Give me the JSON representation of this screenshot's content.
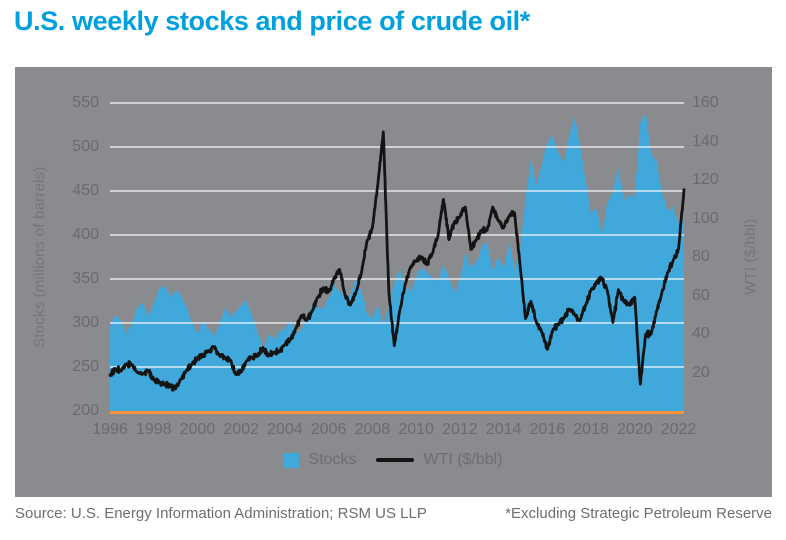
{
  "title": "U.S. weekly stocks and price of crude oil*",
  "footer": {
    "source": "Source: U.S. Energy Information Administration; RSM US LLP",
    "note": "*Excluding Strategic Petroleum Reserve"
  },
  "colors": {
    "title_blue": "#00a0dc",
    "area_blue": "#41a8dc",
    "line_black": "#141414",
    "panel_gray": "#8a8b8e",
    "baseline_orange": "#f6923c",
    "tick_text_gray": "#6a6b6e",
    "gridline_white": "rgba(255,255,255,0.8)"
  },
  "chart_data": {
    "type": "area+line",
    "title": "U.S. weekly stocks and price of crude oil*",
    "grid": "horizontal gridlines on, white, at left-axis 50-step",
    "legend_position": "bottom-center inside plot panel",
    "x_domain": [
      1996,
      2022.25
    ],
    "x_ticks": [
      1996,
      1998,
      2000,
      2002,
      2004,
      2006,
      2008,
      2010,
      2012,
      2014,
      2016,
      2018,
      2020,
      2022
    ],
    "x_start": 1996.0,
    "x_step_years": 0.25,
    "left_axis": {
      "label": "Stocks (millions of barrels)",
      "min": 200,
      "max": 550,
      "tick_step": 50,
      "ticks": [
        550,
        500,
        450,
        400,
        350,
        300,
        250,
        200
      ]
    },
    "right_axis": {
      "label": "WTI ($/bbl)",
      "min": 0,
      "max": 160,
      "tick_step": 20,
      "ticks": [
        160,
        140,
        120,
        100,
        80,
        60,
        40,
        20
      ]
    },
    "series": [
      {
        "name": "Stocks",
        "type": "area",
        "axis": "left",
        "color": "#41a8dc",
        "values": [
          295,
          310,
          303,
          288,
          300,
          318,
          322,
          308,
          322,
          340,
          343,
          330,
          338,
          332,
          318,
          300,
          288,
          302,
          294,
          285,
          298,
          318,
          308,
          312,
          320,
          326,
          308,
          288,
          272,
          286,
          282,
          290,
          294,
          302,
          288,
          293,
          306,
          322,
          318,
          316,
          328,
          344,
          336,
          330,
          332,
          350,
          336,
          312,
          306,
          320,
          298,
          318,
          346,
          362,
          342,
          336,
          352,
          363,
          358,
          350,
          348,
          366,
          352,
          334,
          350,
          380,
          364,
          370,
          386,
          392,
          360,
          374,
          362,
          392,
          362,
          380,
          442,
          486,
          456,
          480,
          506,
          512,
          494,
          482,
          514,
          533,
          502,
          462,
          424,
          430,
          402,
          438,
          448,
          476,
          440,
          446,
          444,
          528,
          538,
          492,
          484,
          448,
          428,
          432,
          414,
          416
        ]
      },
      {
        "name": "WTI ($/bbl)",
        "type": "line",
        "axis": "right",
        "color": "#141414",
        "values": [
          18.5,
          22,
          21,
          24.5,
          24,
          20,
          19.5,
          21,
          16.5,
          15,
          14,
          13,
          11.5,
          16.5,
          21,
          24.5,
          27.5,
          28.5,
          31,
          33.5,
          29,
          27.5,
          26.5,
          19,
          20.5,
          26,
          27.5,
          28.5,
          33,
          28.5,
          30.5,
          31,
          34.5,
          37,
          43,
          49.5,
          47,
          52,
          59,
          64,
          62,
          69,
          73.5,
          60,
          55,
          62,
          72,
          88,
          95,
          118,
          145,
          62,
          34,
          52,
          66,
          75,
          78,
          80,
          76,
          82,
          91,
          110,
          89,
          98,
          101,
          106,
          84,
          89,
          94,
          94,
          106,
          99,
          95,
          101,
          103,
          76,
          48,
          57,
          46,
          41,
          32,
          42,
          45,
          48,
          53,
          50,
          47,
          55,
          63,
          67,
          69,
          62,
          46,
          63,
          57,
          55,
          59,
          14,
          40,
          40,
          52,
          62,
          72,
          78,
          84,
          115
        ]
      }
    ]
  }
}
